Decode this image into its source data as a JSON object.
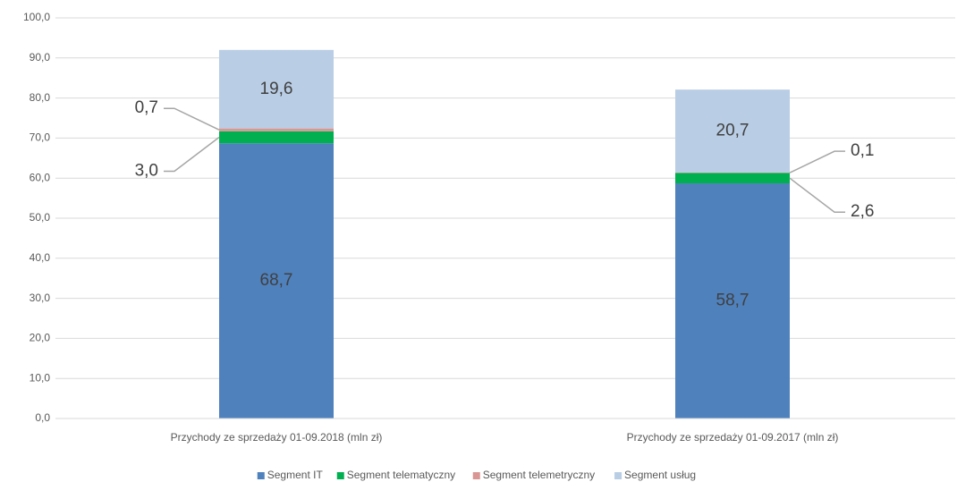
{
  "chart_data": {
    "type": "stacked_bar",
    "categories": [
      "Przychody ze sprzedaży 01-09.2018 (mln zł)",
      "Przychody ze sprzedaży 01-09.2017 (mln zł)"
    ],
    "series": [
      {
        "name": "Segment IT",
        "color": "#4f81bd",
        "values": [
          68.7,
          58.7
        ],
        "value_labels": [
          "68,7",
          "58,7"
        ]
      },
      {
        "name": "Segment telematyczny",
        "color": "#00b050",
        "values": [
          3.0,
          2.6
        ],
        "value_labels": [
          "3,0",
          "2,6"
        ]
      },
      {
        "name": "Segment telemetryczny",
        "color": "#d99694",
        "values": [
          0.7,
          0.1
        ],
        "value_labels": [
          "0,7",
          "0,1"
        ]
      },
      {
        "name": "Segment  usług",
        "color": "#b9cde5",
        "values": [
          19.6,
          20.7
        ],
        "value_labels": [
          "19,6",
          "20,7"
        ]
      }
    ],
    "ylim": [
      0,
      100
    ],
    "yticks": [
      {
        "value": 0,
        "label": "0,0"
      },
      {
        "value": 10,
        "label": "10,0"
      },
      {
        "value": 20,
        "label": "20,0"
      },
      {
        "value": 30,
        "label": "30,0"
      },
      {
        "value": 40,
        "label": "40,0"
      },
      {
        "value": 50,
        "label": "50,0"
      },
      {
        "value": 60,
        "label": "60,0"
      },
      {
        "value": 70,
        "label": "70,0"
      },
      {
        "value": 80,
        "label": "80,0"
      },
      {
        "value": 90,
        "label": "90,0"
      },
      {
        "value": 100,
        "label": "100,0"
      }
    ],
    "grid": true,
    "legend": "bottom"
  }
}
